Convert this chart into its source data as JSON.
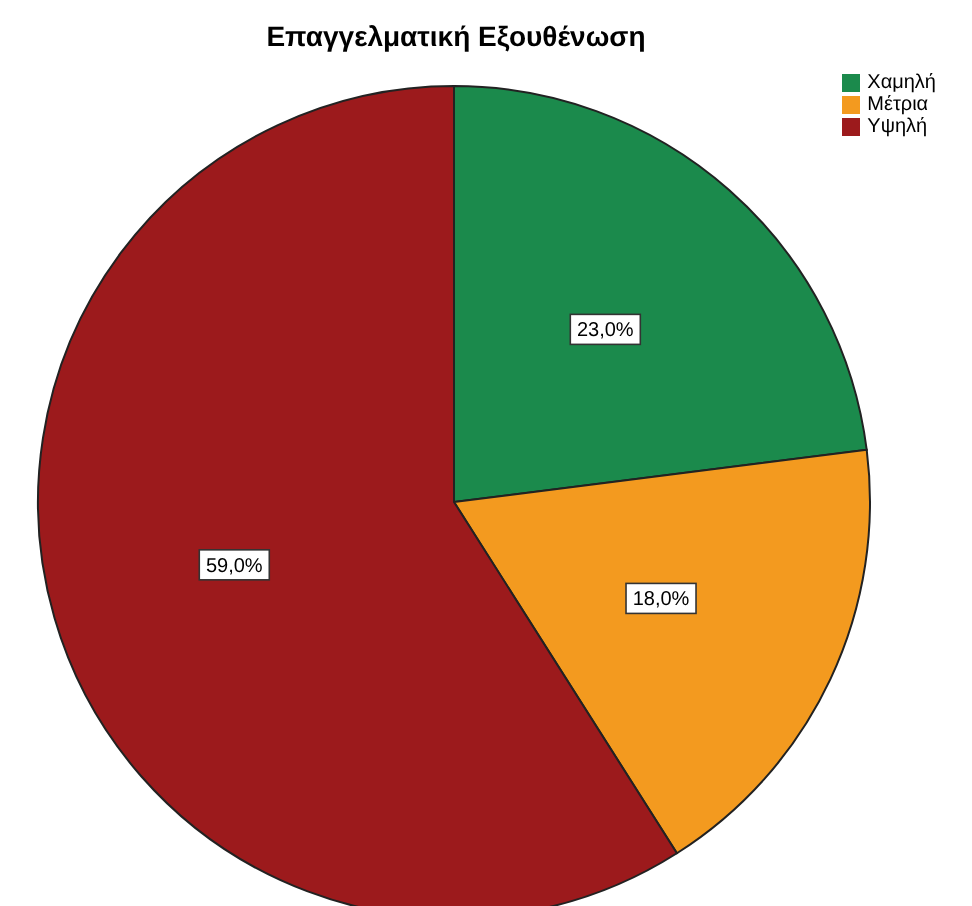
{
  "chart_data": {
    "type": "pie",
    "title": "Επαγγελματική Εξουθένωση",
    "categories": [
      "Χαμηλή",
      "Μέτρια",
      "Υψηλή"
    ],
    "values": [
      23,
      18,
      59
    ],
    "colors": [
      "#1b8a4c",
      "#f39a1f",
      "#9c1a1c"
    ],
    "value_labels": [
      "23,0%",
      "18,0%",
      "59,0%"
    ],
    "legend": "top right"
  }
}
